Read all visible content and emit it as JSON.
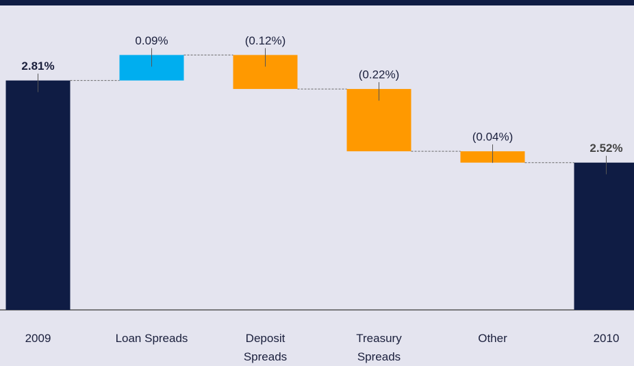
{
  "chart_data": {
    "type": "waterfall",
    "categories": [
      "2009",
      "Loan Spreads",
      "Deposit Spreads",
      "Treasury Spreads",
      "Other",
      "2010"
    ],
    "values": [
      2.81,
      0.09,
      -0.12,
      -0.22,
      -0.04,
      2.52
    ],
    "value_labels": [
      "2.81%",
      "0.09%",
      "(0.12%)",
      "(0.22%)",
      "(0.04%)",
      "2.52%"
    ],
    "colors": {
      "total": "#0f1c44",
      "increase": "#00aeef",
      "decrease": "#ff9900"
    },
    "ylim": [
      2.0,
      3.07
    ]
  }
}
